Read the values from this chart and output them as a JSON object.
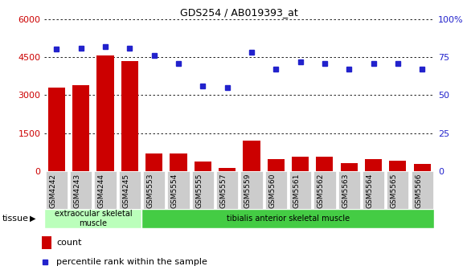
{
  "title": "GDS254 / AB019393_at",
  "categories": [
    "GSM4242",
    "GSM4243",
    "GSM4244",
    "GSM4245",
    "GSM5553",
    "GSM5554",
    "GSM5555",
    "GSM5557",
    "GSM5559",
    "GSM5560",
    "GSM5561",
    "GSM5562",
    "GSM5563",
    "GSM5564",
    "GSM5565",
    "GSM5566"
  ],
  "counts": [
    3300,
    3400,
    4550,
    4350,
    700,
    700,
    380,
    150,
    1200,
    480,
    580,
    580,
    340,
    480,
    430,
    290
  ],
  "percentiles": [
    80,
    81,
    82,
    81,
    76,
    71,
    56,
    55,
    78,
    67,
    72,
    71,
    67,
    71,
    71,
    67
  ],
  "bar_color": "#cc0000",
  "dot_color": "#2222cc",
  "left_ylim": [
    0,
    6000
  ],
  "right_ylim": [
    0,
    100
  ],
  "left_yticks": [
    0,
    1500,
    3000,
    4500,
    6000
  ],
  "right_yticks": [
    0,
    25,
    50,
    75,
    100
  ],
  "right_yticklabels": [
    "0",
    "25",
    "50",
    "75",
    "100%"
  ],
  "tissue_groups": [
    {
      "label": "extraocular skeletal\nmuscle",
      "start": 0,
      "end": 4,
      "color": "#bbffbb"
    },
    {
      "label": "tibialis anterior skeletal muscle",
      "start": 4,
      "end": 16,
      "color": "#44cc44"
    }
  ],
  "tissue_label": "tissue",
  "legend_count_label": "count",
  "legend_percentile_label": "percentile rank within the sample",
  "bg_color": "#ffffff",
  "plot_bg_color": "#ffffff",
  "tick_color_left": "#cc0000",
  "tick_color_right": "#2222cc",
  "xtick_bg_color": "#cccccc"
}
